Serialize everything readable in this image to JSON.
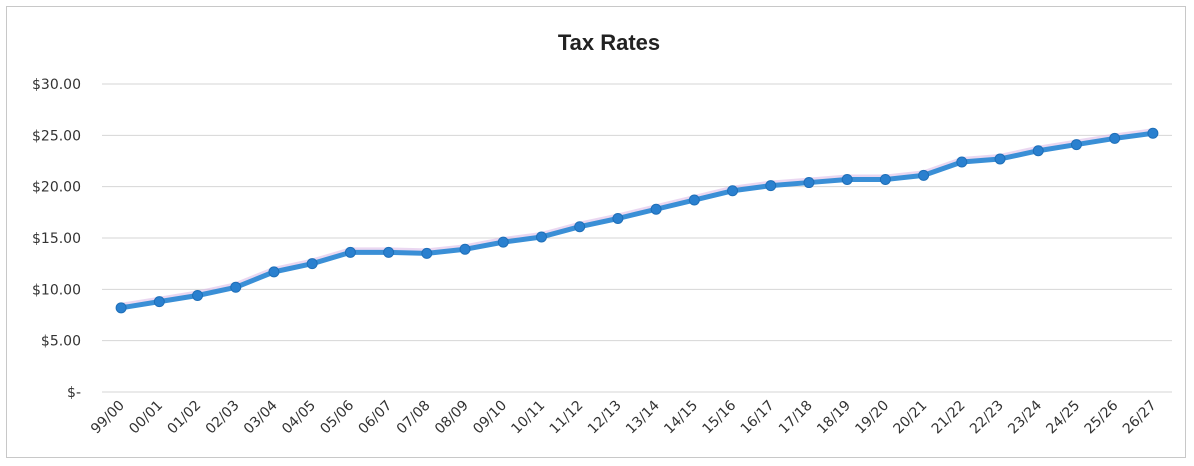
{
  "chart_data": {
    "type": "line",
    "title": "Tax Rates",
    "xlabel": "",
    "ylabel": "",
    "ylim": [
      0,
      30
    ],
    "y_ticks": [
      "$-",
      "$5.00",
      "$10.00",
      "$15.00",
      "$20.00",
      "$25.00",
      "$30.00"
    ],
    "y_tick_values": [
      0,
      5,
      10,
      15,
      20,
      25,
      30
    ],
    "grid": true,
    "legend": "none",
    "categories": [
      "99/00",
      "00/01",
      "01/02",
      "02/03",
      "03/04",
      "04/05",
      "05/06",
      "06/07",
      "07/08",
      "08/09",
      "09/10",
      "10/11",
      "11/12",
      "12/13",
      "13/14",
      "14/15",
      "15/16",
      "16/17",
      "17/18",
      "18/19",
      "19/20",
      "20/21",
      "21/22",
      "22/23",
      "23/24",
      "24/25",
      "25/26",
      "26/27"
    ],
    "series": [
      {
        "color": "#3a8fd6",
        "values": [
          8.2,
          8.8,
          9.4,
          10.2,
          11.7,
          12.5,
          13.6,
          13.6,
          13.5,
          13.9,
          14.6,
          15.1,
          16.1,
          16.9,
          17.8,
          18.7,
          19.6,
          20.1,
          20.4,
          20.7,
          20.7,
          21.1,
          22.4,
          22.7,
          23.5,
          24.1,
          24.7,
          25.2
        ]
      }
    ]
  }
}
